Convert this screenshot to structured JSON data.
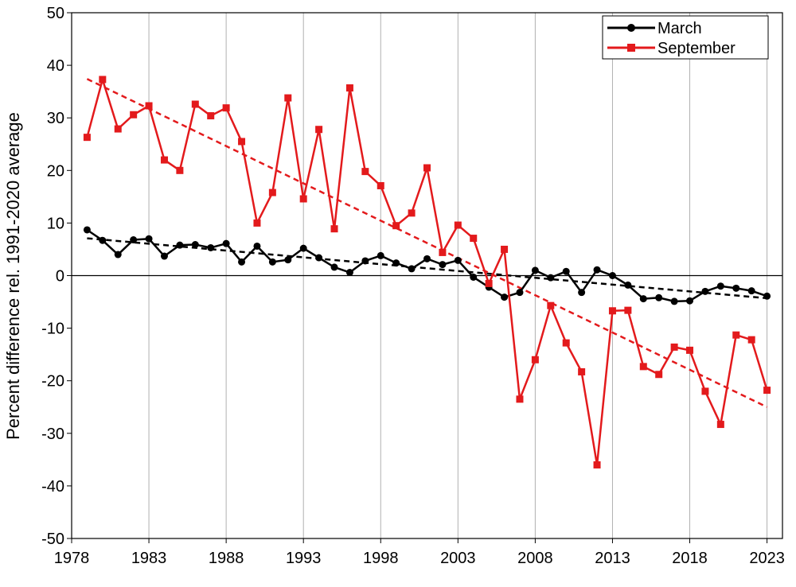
{
  "chart_data": {
    "type": "line",
    "title": "",
    "xlabel": "",
    "ylabel": "Percent difference rel. 1991-2020 average",
    "xlim": [
      1978,
      2024
    ],
    "ylim": [
      -50,
      50
    ],
    "xticks": [
      1978,
      1983,
      1988,
      1993,
      1998,
      2003,
      2008,
      2013,
      2018,
      2023
    ],
    "yticks": [
      -50,
      -40,
      -30,
      -20,
      -10,
      0,
      10,
      20,
      30,
      40,
      50
    ],
    "grid": true,
    "legend_position": "top-right",
    "colors": {
      "march": "#000000",
      "september": "#e31a1c",
      "zero_line": "#000000"
    },
    "x": [
      1979,
      1980,
      1981,
      1982,
      1983,
      1984,
      1985,
      1986,
      1987,
      1988,
      1989,
      1990,
      1991,
      1992,
      1993,
      1994,
      1995,
      1996,
      1997,
      1998,
      1999,
      2000,
      2001,
      2002,
      2003,
      2004,
      2005,
      2006,
      2007,
      2008,
      2009,
      2010,
      2011,
      2012,
      2013,
      2014,
      2015,
      2016,
      2017,
      2018,
      2019,
      2020,
      2021,
      2022,
      2023
    ],
    "series": [
      {
        "name": "March",
        "marker": "circle",
        "color": "#000000",
        "values": [
          8.7,
          6.7,
          4.0,
          6.8,
          7.0,
          3.7,
          5.8,
          5.9,
          5.3,
          6.1,
          2.6,
          5.6,
          2.6,
          3.0,
          5.2,
          3.4,
          1.6,
          0.6,
          2.8,
          3.8,
          2.4,
          1.3,
          3.2,
          2.1,
          2.9,
          -0.3,
          -2.2,
          -4.1,
          -3.2,
          1.0,
          -0.4,
          0.8,
          -3.2,
          1.1,
          0.0,
          -1.8,
          -4.4,
          -4.2,
          -4.9,
          -4.8,
          -3.0,
          -2.0,
          -2.4,
          -2.9,
          -3.9
        ],
        "trend": {
          "start": [
            1979,
            7.1
          ],
          "end": [
            2023,
            -4.3
          ]
        }
      },
      {
        "name": "September",
        "marker": "square",
        "color": "#e31a1c",
        "values": [
          26.3,
          37.3,
          27.9,
          30.6,
          32.3,
          22.0,
          20.0,
          32.6,
          30.4,
          31.9,
          25.5,
          10.0,
          15.8,
          33.8,
          14.6,
          27.8,
          8.9,
          35.7,
          19.8,
          17.1,
          9.5,
          11.9,
          20.5,
          4.4,
          9.6,
          7.1,
          -1.5,
          5.0,
          -23.5,
          -16.0,
          -5.7,
          -12.8,
          -18.3,
          -36.0,
          -6.7,
          -6.6,
          -17.3,
          -18.8,
          -13.6,
          -14.2,
          -22.0,
          -28.3,
          -11.3,
          -12.2,
          -21.8
        ],
        "trend": {
          "start": [
            1979,
            37.4
          ],
          "end": [
            2023,
            -25.0
          ]
        }
      }
    ]
  }
}
